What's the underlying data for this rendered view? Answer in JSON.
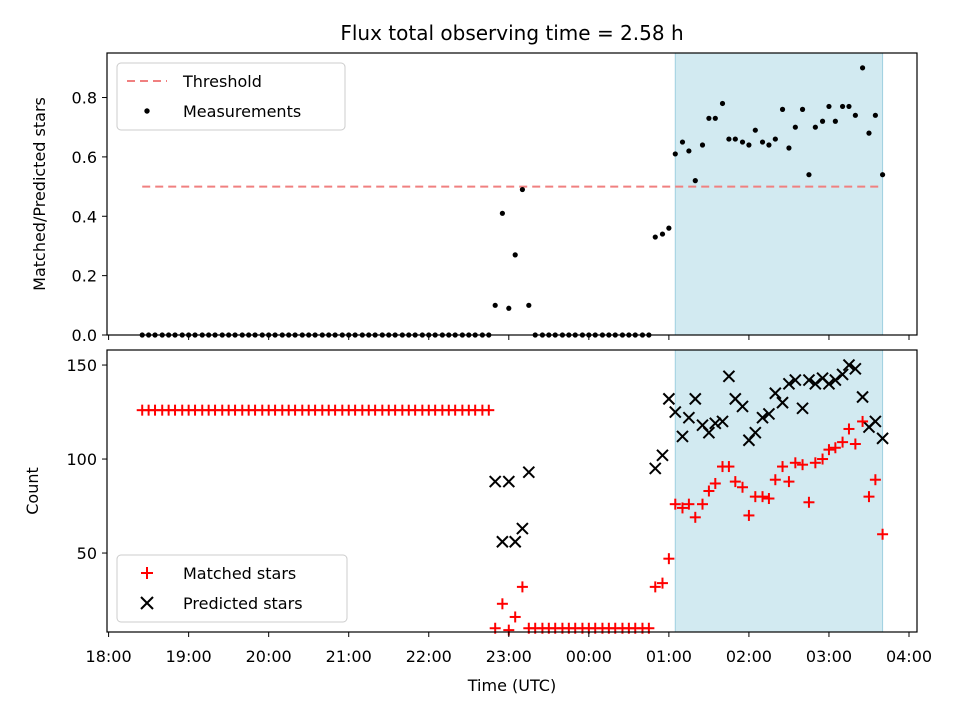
{
  "chart_data": {
    "type": "scatter",
    "title": "Flux total observing time = 2.58 h",
    "xlabel": "Time (UTC)",
    "x_ticks": [
      "18:00",
      "19:00",
      "20:00",
      "21:00",
      "22:00",
      "23:00",
      "00:00",
      "01:00",
      "02:00",
      "03:00",
      "04:00"
    ],
    "x_range_hours": [
      17.98,
      28.1
    ],
    "shaded_region_hours": [
      25.08,
      27.67
    ],
    "colors": {
      "threshold": "#f08080",
      "measurements": "#000000",
      "matched": "#ff0000",
      "predicted": "#000000",
      "shade": "#add8e6"
    },
    "top": {
      "ylabel": "Matched/Predicted stars",
      "ylim": [
        0,
        0.95
      ],
      "y_ticks": [
        "0.0",
        "0.2",
        "0.4",
        "0.6",
        "0.8"
      ],
      "legend": [
        "Threshold",
        "Measurements"
      ],
      "threshold": {
        "value": 0.5,
        "x_start": 18.42,
        "x_end": 27.67
      },
      "measurements": [
        [
          18.42,
          0
        ],
        [
          18.5,
          0
        ],
        [
          18.58,
          0
        ],
        [
          18.67,
          0
        ],
        [
          18.75,
          0
        ],
        [
          18.83,
          0
        ],
        [
          18.92,
          0
        ],
        [
          19.0,
          0
        ],
        [
          19.08,
          0
        ],
        [
          19.17,
          0
        ],
        [
          19.25,
          0
        ],
        [
          19.33,
          0
        ],
        [
          19.42,
          0
        ],
        [
          19.5,
          0
        ],
        [
          19.58,
          0
        ],
        [
          19.67,
          0
        ],
        [
          19.75,
          0
        ],
        [
          19.83,
          0
        ],
        [
          19.92,
          0
        ],
        [
          20.0,
          0
        ],
        [
          20.08,
          0
        ],
        [
          20.17,
          0
        ],
        [
          20.25,
          0
        ],
        [
          20.33,
          0
        ],
        [
          20.42,
          0
        ],
        [
          20.5,
          0
        ],
        [
          20.58,
          0
        ],
        [
          20.67,
          0
        ],
        [
          20.75,
          0
        ],
        [
          20.83,
          0
        ],
        [
          20.92,
          0
        ],
        [
          21.0,
          0
        ],
        [
          21.08,
          0
        ],
        [
          21.17,
          0
        ],
        [
          21.25,
          0
        ],
        [
          21.33,
          0
        ],
        [
          21.42,
          0
        ],
        [
          21.5,
          0
        ],
        [
          21.58,
          0
        ],
        [
          21.67,
          0
        ],
        [
          21.75,
          0
        ],
        [
          21.83,
          0
        ],
        [
          21.92,
          0
        ],
        [
          22.0,
          0
        ],
        [
          22.08,
          0
        ],
        [
          22.17,
          0
        ],
        [
          22.25,
          0
        ],
        [
          22.33,
          0
        ],
        [
          22.42,
          0
        ],
        [
          22.5,
          0
        ],
        [
          22.58,
          0
        ],
        [
          22.67,
          0
        ],
        [
          22.75,
          0
        ],
        [
          22.83,
          0.1
        ],
        [
          22.92,
          0.41
        ],
        [
          23.0,
          0.09
        ],
        [
          23.08,
          0.27
        ],
        [
          23.17,
          0.49
        ],
        [
          23.25,
          0.1
        ],
        [
          23.33,
          0
        ],
        [
          23.42,
          0
        ],
        [
          23.5,
          0
        ],
        [
          23.58,
          0
        ],
        [
          23.67,
          0
        ],
        [
          23.75,
          0
        ],
        [
          23.83,
          0
        ],
        [
          23.92,
          0
        ],
        [
          24.0,
          0
        ],
        [
          24.08,
          0
        ],
        [
          24.17,
          0
        ],
        [
          24.25,
          0
        ],
        [
          24.33,
          0
        ],
        [
          24.42,
          0
        ],
        [
          24.5,
          0
        ],
        [
          24.58,
          0
        ],
        [
          24.67,
          0
        ],
        [
          24.75,
          0
        ],
        [
          24.83,
          0.33
        ],
        [
          24.92,
          0.34
        ],
        [
          25.0,
          0.36
        ],
        [
          25.08,
          0.61
        ],
        [
          25.17,
          0.65
        ],
        [
          25.25,
          0.62
        ],
        [
          25.33,
          0.52
        ],
        [
          25.42,
          0.64
        ],
        [
          25.5,
          0.73
        ],
        [
          25.58,
          0.73
        ],
        [
          25.67,
          0.78
        ],
        [
          25.75,
          0.66
        ],
        [
          25.83,
          0.66
        ],
        [
          25.92,
          0.65
        ],
        [
          26.0,
          0.64
        ],
        [
          26.08,
          0.69
        ],
        [
          26.17,
          0.65
        ],
        [
          26.25,
          0.64
        ],
        [
          26.33,
          0.66
        ],
        [
          26.42,
          0.76
        ],
        [
          26.5,
          0.63
        ],
        [
          26.58,
          0.7
        ],
        [
          26.67,
          0.76
        ],
        [
          26.75,
          0.54
        ],
        [
          26.83,
          0.7
        ],
        [
          26.92,
          0.72
        ],
        [
          27.0,
          0.77
        ],
        [
          27.08,
          0.72
        ],
        [
          27.17,
          0.77
        ],
        [
          27.25,
          0.77
        ],
        [
          27.33,
          0.74
        ],
        [
          27.42,
          0.9
        ],
        [
          27.5,
          0.68
        ],
        [
          27.58,
          0.74
        ],
        [
          27.67,
          0.54
        ]
      ]
    },
    "bottom": {
      "ylabel": "Count",
      "ylim": [
        8,
        158
      ],
      "y_ticks": [
        "50",
        "100",
        "150"
      ],
      "y_tick_values": [
        50,
        100,
        150
      ],
      "legend": [
        "Matched stars",
        "Predicted stars"
      ],
      "matched": [
        [
          18.42,
          126
        ],
        [
          18.5,
          126
        ],
        [
          18.58,
          126
        ],
        [
          18.67,
          126
        ],
        [
          18.75,
          126
        ],
        [
          18.83,
          126
        ],
        [
          18.92,
          126
        ],
        [
          19.0,
          126
        ],
        [
          19.08,
          126
        ],
        [
          19.17,
          126
        ],
        [
          19.25,
          126
        ],
        [
          19.33,
          126
        ],
        [
          19.42,
          126
        ],
        [
          19.5,
          126
        ],
        [
          19.58,
          126
        ],
        [
          19.67,
          126
        ],
        [
          19.75,
          126
        ],
        [
          19.83,
          126
        ],
        [
          19.92,
          126
        ],
        [
          20.0,
          126
        ],
        [
          20.08,
          126
        ],
        [
          20.17,
          126
        ],
        [
          20.25,
          126
        ],
        [
          20.33,
          126
        ],
        [
          20.42,
          126
        ],
        [
          20.5,
          126
        ],
        [
          20.58,
          126
        ],
        [
          20.67,
          126
        ],
        [
          20.75,
          126
        ],
        [
          20.83,
          126
        ],
        [
          20.92,
          126
        ],
        [
          21.0,
          126
        ],
        [
          21.08,
          126
        ],
        [
          21.17,
          126
        ],
        [
          21.25,
          126
        ],
        [
          21.33,
          126
        ],
        [
          21.42,
          126
        ],
        [
          21.5,
          126
        ],
        [
          21.58,
          126
        ],
        [
          21.67,
          126
        ],
        [
          21.75,
          126
        ],
        [
          21.83,
          126
        ],
        [
          21.92,
          126
        ],
        [
          22.0,
          126
        ],
        [
          22.08,
          126
        ],
        [
          22.17,
          126
        ],
        [
          22.25,
          126
        ],
        [
          22.33,
          126
        ],
        [
          22.42,
          126
        ],
        [
          22.5,
          126
        ],
        [
          22.58,
          126
        ],
        [
          22.67,
          126
        ],
        [
          22.75,
          126
        ],
        [
          22.83,
          10
        ],
        [
          22.92,
          23
        ],
        [
          23.0,
          9
        ],
        [
          23.08,
          16
        ],
        [
          23.17,
          32
        ],
        [
          23.25,
          10
        ],
        [
          23.33,
          10
        ],
        [
          23.42,
          10
        ],
        [
          23.5,
          10
        ],
        [
          23.58,
          10
        ],
        [
          23.67,
          10
        ],
        [
          23.75,
          10
        ],
        [
          23.83,
          10
        ],
        [
          23.92,
          10
        ],
        [
          24.0,
          10
        ],
        [
          24.08,
          10
        ],
        [
          24.17,
          10
        ],
        [
          24.25,
          10
        ],
        [
          24.33,
          10
        ],
        [
          24.42,
          10
        ],
        [
          24.5,
          10
        ],
        [
          24.58,
          10
        ],
        [
          24.67,
          10
        ],
        [
          24.75,
          10
        ],
        [
          24.83,
          32
        ],
        [
          24.92,
          34
        ],
        [
          25.0,
          47
        ],
        [
          25.08,
          76
        ],
        [
          25.17,
          74
        ],
        [
          25.25,
          76
        ],
        [
          25.33,
          69
        ],
        [
          25.42,
          76
        ],
        [
          25.5,
          83
        ],
        [
          25.58,
          87
        ],
        [
          25.67,
          96
        ],
        [
          25.75,
          96
        ],
        [
          25.83,
          88
        ],
        [
          25.92,
          85
        ],
        [
          26.0,
          70
        ],
        [
          26.08,
          80
        ],
        [
          26.17,
          80
        ],
        [
          26.25,
          79
        ],
        [
          26.33,
          89
        ],
        [
          26.42,
          96
        ],
        [
          26.5,
          88
        ],
        [
          26.58,
          98
        ],
        [
          26.67,
          97
        ],
        [
          26.75,
          77
        ],
        [
          26.83,
          98
        ],
        [
          26.92,
          100
        ],
        [
          27.0,
          105
        ],
        [
          27.08,
          106
        ],
        [
          27.17,
          109
        ],
        [
          27.25,
          116
        ],
        [
          27.33,
          108
        ],
        [
          27.42,
          120
        ],
        [
          27.5,
          80
        ],
        [
          27.58,
          89
        ],
        [
          27.67,
          60
        ]
      ],
      "predicted": [
        [
          22.83,
          88
        ],
        [
          22.92,
          56
        ],
        [
          23.0,
          88
        ],
        [
          23.08,
          56
        ],
        [
          23.17,
          63
        ],
        [
          23.25,
          93
        ],
        [
          24.83,
          95
        ],
        [
          24.92,
          102
        ],
        [
          25.0,
          132
        ],
        [
          25.08,
          125
        ],
        [
          25.17,
          112
        ],
        [
          25.25,
          122
        ],
        [
          25.33,
          132
        ],
        [
          25.42,
          118
        ],
        [
          25.5,
          114
        ],
        [
          25.58,
          119
        ],
        [
          25.67,
          120
        ],
        [
          25.75,
          144
        ],
        [
          25.83,
          132
        ],
        [
          25.92,
          128
        ],
        [
          26.0,
          110
        ],
        [
          26.08,
          114
        ],
        [
          26.17,
          122
        ],
        [
          26.25,
          124
        ],
        [
          26.33,
          135
        ],
        [
          26.42,
          130
        ],
        [
          26.5,
          140
        ],
        [
          26.58,
          142
        ],
        [
          26.67,
          127
        ],
        [
          26.75,
          142
        ],
        [
          26.83,
          140
        ],
        [
          26.92,
          143
        ],
        [
          27.0,
          140
        ],
        [
          27.08,
          142
        ],
        [
          27.17,
          145
        ],
        [
          27.25,
          150
        ],
        [
          27.33,
          148
        ],
        [
          27.42,
          133
        ],
        [
          27.5,
          117
        ],
        [
          27.58,
          120
        ],
        [
          27.67,
          111
        ]
      ]
    }
  }
}
